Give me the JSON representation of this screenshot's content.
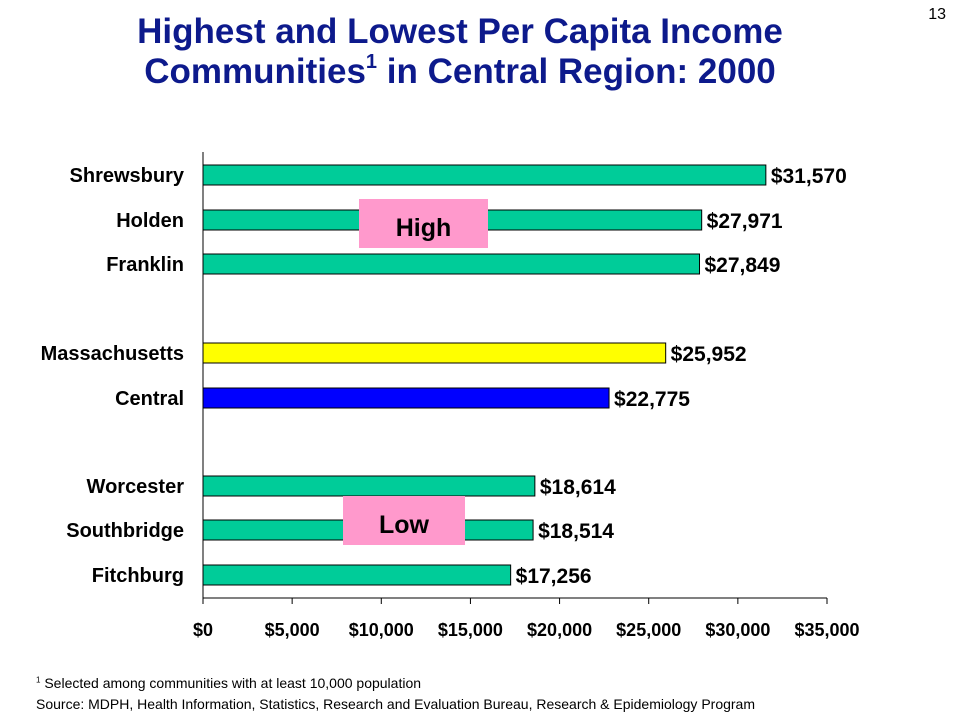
{
  "page_number": "13",
  "title": {
    "line1": "Highest and Lowest Per Capita Income",
    "line2_a": "Communities",
    "line2_sup": "1",
    "line2_b": " in Central Region: 2000"
  },
  "footnote": {
    "marker": "1",
    "text": " Selected among communities with at least 10,000 population"
  },
  "source": "Source:  MDPH, Health Information, Statistics, Research and Evaluation Bureau, Research & Epidemiology Program",
  "colors": {
    "community": "#00cc99",
    "state": "#ffff00",
    "region": "#0000ff",
    "badge": "#ff99cc"
  },
  "chart_data": {
    "type": "bar",
    "orientation": "horizontal",
    "xlim": [
      0,
      35000
    ],
    "x_ticks": [
      0,
      5000,
      10000,
      15000,
      20000,
      25000,
      30000,
      35000
    ],
    "x_tick_labels": [
      "$0",
      "$5,000",
      "$10,000",
      "$15,000",
      "$20,000",
      "$25,000",
      "$30,000",
      "$35,000"
    ],
    "bars": [
      {
        "category": "Shrewsbury",
        "value": 31570,
        "label": "$31,570",
        "group": "community"
      },
      {
        "category": "Holden",
        "value": 27971,
        "label": "$27,971",
        "group": "community"
      },
      {
        "category": "Franklin",
        "value": 27849,
        "label": "$27,849",
        "group": "community"
      },
      {
        "category": "Massachusetts",
        "value": 25952,
        "label": "$25,952",
        "group": "state"
      },
      {
        "category": "Central",
        "value": 22775,
        "label": "$22,775",
        "group": "region"
      },
      {
        "category": "Worcester",
        "value": 18614,
        "label": "$18,614",
        "group": "community"
      },
      {
        "category": "Southbridge",
        "value": 18514,
        "label": "$18,514",
        "group": "community"
      },
      {
        "category": "Fitchburg",
        "value": 17256,
        "label": "$17,256",
        "group": "community"
      }
    ],
    "annotations": [
      "High",
      "Low"
    ]
  }
}
